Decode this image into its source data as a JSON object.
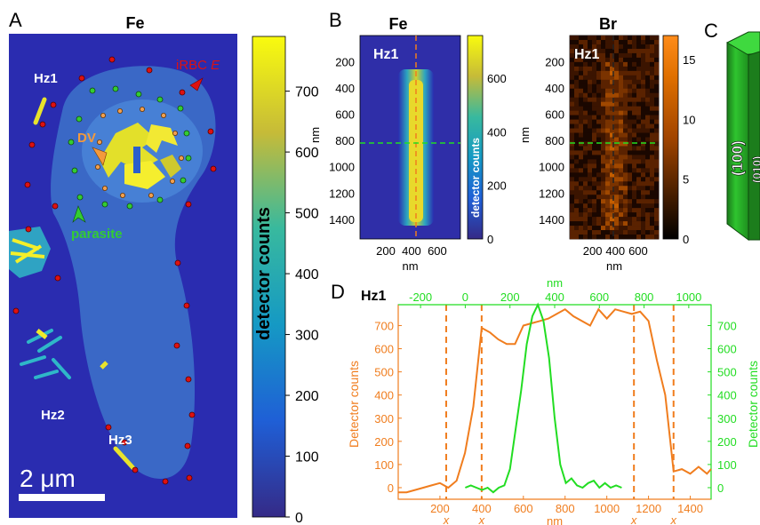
{
  "panels": {
    "A": {
      "letter": "A",
      "title": "Fe",
      "labels": [
        "Hz1",
        "iRBC E",
        "DV",
        "parasite",
        "Hz2",
        "Hz3"
      ],
      "scale_bar": "2 μm",
      "colorbar": {
        "label": "detector counts",
        "ticks": [
          "0",
          "100",
          "200",
          "300",
          "400",
          "500",
          "600",
          "700"
        ]
      }
    },
    "B": {
      "letter": "B",
      "left": {
        "title": "Fe",
        "tag": "Hz1",
        "ylabel": "nm",
        "xlabel": "nm",
        "yticks": [
          "200",
          "400",
          "600",
          "800",
          "1000",
          "1200",
          "1400"
        ],
        "xticks": [
          "200",
          "400",
          "600"
        ],
        "colorbar": {
          "label": "detector counts",
          "ticks": [
            "0",
            "200",
            "400",
            "600"
          ]
        }
      },
      "right": {
        "title": "Br",
        "tag": "Hz1",
        "ylabel": "nm",
        "xlabel": "nm",
        "yticks": [
          "200",
          "400",
          "600",
          "800",
          "1000",
          "1200",
          "1400"
        ],
        "xticks": [
          "200",
          "400",
          "600"
        ],
        "colorbar": {
          "ticks": [
            "0",
            "5",
            "10",
            "15"
          ]
        }
      }
    },
    "C": {
      "letter": "C",
      "faces": [
        "(100)",
        "(010)"
      ]
    },
    "D": {
      "letter": "D",
      "tag": "Hz1"
    }
  },
  "colors": {
    "orange": "#f07d1e",
    "green": "#22dd22",
    "map_bg": "#2a2cb0",
    "red_dot": "#dd1111"
  },
  "chart_data": {
    "type": "line",
    "title": "",
    "xlabel": "nm",
    "ylabel": "Detector counts",
    "x_top_label": "nm",
    "ylabel_right": "Detector counts",
    "xlim": [
      0,
      1500
    ],
    "ylim": [
      -50,
      790
    ],
    "x_top_lim": [
      -300,
      1100
    ],
    "ylim_right": [
      -50,
      790
    ],
    "x_ticks": [
      200,
      400,
      600,
      800,
      1000,
      1200,
      1400
    ],
    "x_top_ticks": [
      -200,
      0,
      200,
      400,
      600,
      800,
      1000
    ],
    "y_ticks": [
      0,
      100,
      200,
      300,
      400,
      500,
      600,
      700
    ],
    "y_right_ticks": [
      0,
      100,
      200,
      300,
      400,
      500,
      600,
      700
    ],
    "x_marker_labels": [
      "x",
      "x",
      "x",
      "x"
    ],
    "vlines_x": [
      230,
      400,
      1130,
      1320
    ],
    "series": [
      {
        "axis": "bottom-left",
        "color": "#f07d1e",
        "x": [
          0,
          40,
          80,
          120,
          160,
          200,
          240,
          280,
          320,
          360,
          400,
          440,
          480,
          520,
          560,
          600,
          640,
          680,
          720,
          760,
          800,
          840,
          880,
          920,
          960,
          1000,
          1040,
          1080,
          1120,
          1160,
          1200,
          1240,
          1280,
          1320,
          1360,
          1400,
          1440,
          1480,
          1500
        ],
        "y": [
          -20,
          -20,
          -10,
          0,
          10,
          20,
          0,
          30,
          150,
          350,
          690,
          670,
          640,
          620,
          620,
          700,
          710,
          720,
          730,
          750,
          770,
          740,
          720,
          700,
          770,
          730,
          770,
          760,
          750,
          760,
          720,
          550,
          400,
          70,
          80,
          60,
          90,
          60,
          80
        ]
      },
      {
        "axis": "top-right",
        "color": "#22dd22",
        "x": [
          0,
          25,
          50,
          75,
          100,
          125,
          150,
          175,
          200,
          225,
          250,
          275,
          300,
          325,
          350,
          375,
          400,
          425,
          450,
          475,
          500,
          525,
          550,
          575,
          600,
          625,
          650,
          675,
          700
        ],
        "y": [
          0,
          10,
          0,
          -10,
          0,
          -20,
          0,
          10,
          80,
          250,
          420,
          620,
          740,
          790,
          720,
          560,
          300,
          100,
          20,
          40,
          10,
          0,
          20,
          30,
          0,
          20,
          0,
          10,
          0
        ]
      }
    ]
  }
}
